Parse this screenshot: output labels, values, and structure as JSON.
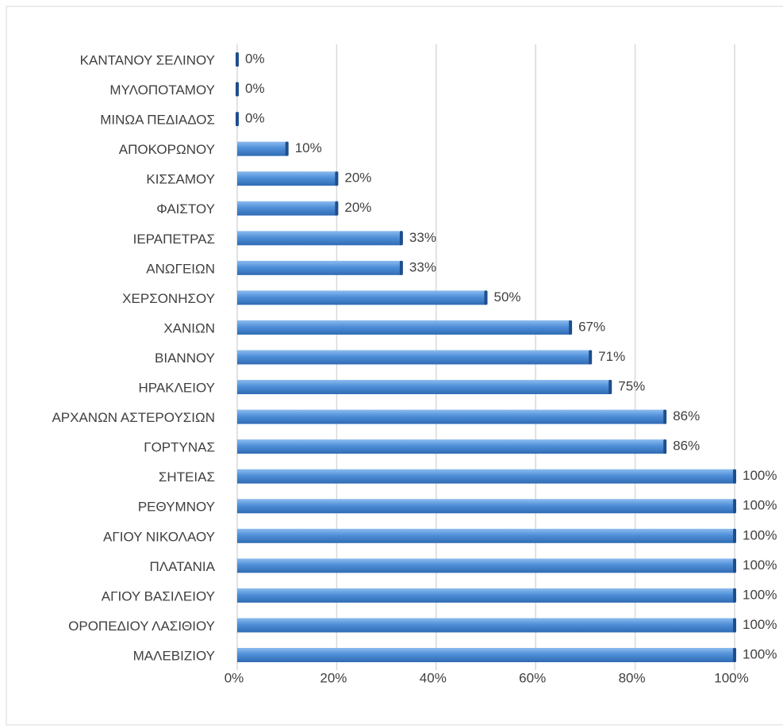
{
  "chart_data": {
    "type": "bar",
    "orientation": "horizontal",
    "categories": [
      "ΚΑΝΤΑΝΟΥ ΣΕΛΙΝΟΥ",
      "ΜΥΛΟΠΟΤΑΜΟΥ",
      "ΜΙΝΩΑ ΠΕΔΙΑΔΟΣ",
      "ΑΠΟΚΟΡΩΝΟΥ",
      "ΚΙΣΣΑΜΟΥ",
      "ΦΑΙΣΤΟΥ",
      "ΙΕΡΑΠΕΤΡΑΣ",
      "ΑΝΩΓΕΙΩΝ",
      "ΧΕΡΣΟΝΗΣΟΥ",
      "ΧΑΝΙΩΝ",
      "ΒΙΑΝΝΟΥ",
      "ΗΡΑΚΛΕΙΟΥ",
      "ΑΡΧΑΝΩΝ ΑΣΤΕΡΟΥΣΙΩΝ",
      "ΓΟΡΤΥΝΑΣ",
      "ΣΗΤΕΙΑΣ",
      "ΡΕΘΥΜΝΟΥ",
      "ΑΓΙΟΥ ΝΙΚΟΛΑΟΥ",
      "ΠΛΑΤΑΝΙΑ",
      "ΑΓΙΟΥ ΒΑΣΙΛΕΙΟΥ",
      "ΟΡΟΠΕΔΙΟΥ ΛΑΣΙΘΙΟΥ",
      "ΜΑΛΕΒΙΖΙΟΥ"
    ],
    "values": [
      0,
      0,
      0,
      10,
      20,
      20,
      33,
      33,
      50,
      67,
      71,
      75,
      86,
      86,
      100,
      100,
      100,
      100,
      100,
      100,
      100
    ],
    "value_labels": [
      "0%",
      "0%",
      "0%",
      "10%",
      "20%",
      "20%",
      "33%",
      "33%",
      "50%",
      "67%",
      "71%",
      "75%",
      "86%",
      "86%",
      "100%",
      "100%",
      "100%",
      "100%",
      "100%",
      "100%",
      "100%"
    ],
    "color": "#4f8fd8",
    "xlim": [
      0,
      100
    ],
    "xticks": [
      {
        "value": 0,
        "label": "0%"
      },
      {
        "value": 20,
        "label": "20%"
      },
      {
        "value": 40,
        "label": "40%"
      },
      {
        "value": 60,
        "label": "60%"
      },
      {
        "value": 80,
        "label": "80%"
      },
      {
        "value": 100,
        "label": "100%"
      }
    ],
    "grid": true
  }
}
